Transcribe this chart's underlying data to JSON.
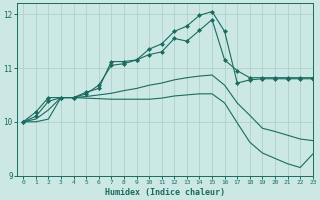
{
  "xlabel": "Humidex (Indice chaleur)",
  "bg_color": "#cce8e4",
  "grid_color": "#aaccca",
  "line_color": "#1a6b60",
  "xlim": [
    -0.5,
    23
  ],
  "ylim": [
    9,
    12.2
  ],
  "yticks": [
    9,
    10,
    11,
    12
  ],
  "xticks": [
    0,
    1,
    2,
    3,
    4,
    5,
    6,
    7,
    8,
    9,
    10,
    11,
    12,
    13,
    14,
    15,
    16,
    17,
    18,
    19,
    20,
    21,
    22,
    23
  ],
  "lines": [
    {
      "x": [
        0,
        1,
        2,
        3,
        4,
        5,
        6,
        7,
        8,
        9,
        10,
        11,
        12,
        13,
        14,
        15,
        16,
        17,
        18,
        19,
        20,
        21,
        22,
        23
      ],
      "y": [
        10.0,
        10.18,
        10.45,
        10.45,
        10.45,
        10.55,
        10.62,
        11.12,
        11.12,
        11.15,
        11.25,
        11.3,
        11.55,
        11.5,
        11.7,
        11.9,
        11.15,
        10.95,
        10.82,
        10.82,
        10.82,
        10.82,
        10.82,
        10.82
      ],
      "marker": true
    },
    {
      "x": [
        0,
        1,
        2,
        3,
        4,
        5,
        6,
        7,
        8,
        9,
        10,
        11,
        12,
        13,
        14,
        15,
        16,
        17,
        18,
        19,
        20,
        21,
        22,
        23
      ],
      "y": [
        10.0,
        10.1,
        10.38,
        10.45,
        10.45,
        10.52,
        10.68,
        11.05,
        11.08,
        11.15,
        11.35,
        11.45,
        11.68,
        11.78,
        11.98,
        12.05,
        11.68,
        10.72,
        10.78,
        10.8,
        10.8,
        10.8,
        10.8,
        10.8
      ],
      "marker": true
    },
    {
      "x": [
        0,
        1,
        2,
        3,
        4,
        5,
        6,
        7,
        8,
        9,
        10,
        11,
        12,
        13,
        14,
        15,
        16,
        17,
        18,
        19,
        20,
        21,
        22,
        23
      ],
      "y": [
        10.0,
        10.05,
        10.22,
        10.45,
        10.45,
        10.47,
        10.5,
        10.53,
        10.58,
        10.62,
        10.68,
        10.72,
        10.78,
        10.82,
        10.85,
        10.87,
        10.68,
        10.35,
        10.12,
        9.88,
        9.82,
        9.75,
        9.68,
        9.65
      ],
      "marker": false
    },
    {
      "x": [
        0,
        1,
        2,
        3,
        4,
        5,
        6,
        7,
        8,
        9,
        10,
        11,
        12,
        13,
        14,
        15,
        16,
        17,
        18,
        19,
        20,
        21,
        22,
        23
      ],
      "y": [
        10.0,
        10.0,
        10.05,
        10.45,
        10.45,
        10.44,
        10.43,
        10.42,
        10.42,
        10.42,
        10.42,
        10.44,
        10.48,
        10.5,
        10.52,
        10.52,
        10.35,
        9.98,
        9.62,
        9.42,
        9.32,
        9.22,
        9.15,
        9.4
      ],
      "marker": false
    }
  ]
}
